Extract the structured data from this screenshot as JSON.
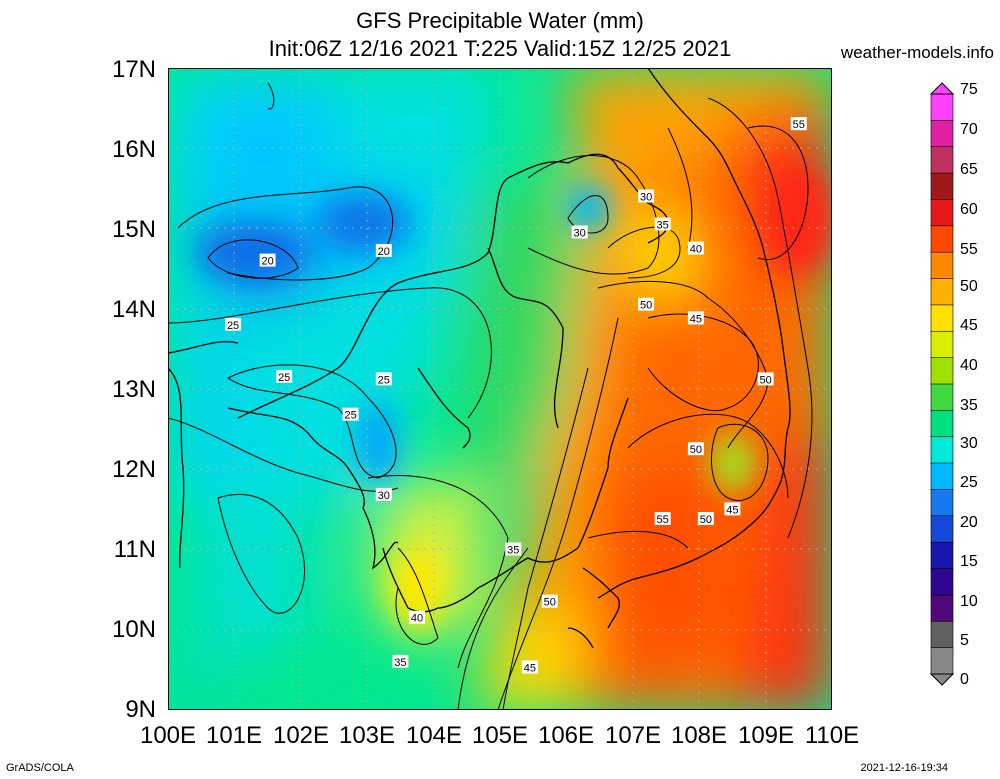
{
  "header": {
    "title": "GFS Precipitable Water (mm)",
    "subtitle": "Init:06Z 12/16 2021 T:225 Valid:15Z 12/25 2021",
    "site": "weather-models.info"
  },
  "footer": {
    "left": "GrADS/COLA",
    "right": "2021-12-16-19:34"
  },
  "axes": {
    "lat_labels": [
      "17N",
      "16N",
      "15N",
      "14N",
      "13N",
      "12N",
      "11N",
      "10N",
      "9N"
    ],
    "lon_labels": [
      "100E",
      "101E",
      "102E",
      "103E",
      "104E",
      "105E",
      "106E",
      "107E",
      "108E",
      "109E",
      "110E"
    ]
  },
  "colorbar": {
    "unit": "mm",
    "labels": [
      "75",
      "70",
      "65",
      "60",
      "55",
      "50",
      "45",
      "40",
      "35",
      "30",
      "25",
      "20",
      "15",
      "10",
      "5",
      "0"
    ],
    "colors": [
      "#ff40ff",
      "#e020a0",
      "#c03060",
      "#a01818",
      "#e81818",
      "#ff4800",
      "#ff8800",
      "#ffb000",
      "#ffe000",
      "#d8f000",
      "#a0e000",
      "#40d840",
      "#00e080",
      "#00e8d8",
      "#00b8ff",
      "#1878f0",
      "#1848d8",
      "#1818b0",
      "#300890",
      "#500878",
      "#606060",
      "#888888"
    ]
  },
  "contours": {
    "labels": [
      {
        "text": "55",
        "lon": 109.5,
        "lat": 16.3
      },
      {
        "text": "30",
        "lon": 107.2,
        "lat": 15.4
      },
      {
        "text": "35",
        "lon": 107.45,
        "lat": 15.05
      },
      {
        "text": "30",
        "lon": 106.2,
        "lat": 14.95
      },
      {
        "text": "40",
        "lon": 107.95,
        "lat": 14.75
      },
      {
        "text": "20",
        "lon": 101.5,
        "lat": 14.6
      },
      {
        "text": "20",
        "lon": 103.25,
        "lat": 14.72
      },
      {
        "text": "50",
        "lon": 107.2,
        "lat": 14.05
      },
      {
        "text": "45",
        "lon": 107.95,
        "lat": 13.88
      },
      {
        "text": "25",
        "lon": 100.98,
        "lat": 13.8
      },
      {
        "text": "25",
        "lon": 101.75,
        "lat": 13.15
      },
      {
        "text": "25",
        "lon": 103.25,
        "lat": 13.12
      },
      {
        "text": "50",
        "lon": 109.0,
        "lat": 13.12
      },
      {
        "text": "25",
        "lon": 102.75,
        "lat": 12.68
      },
      {
        "text": "50",
        "lon": 107.95,
        "lat": 12.25
      },
      {
        "text": "30",
        "lon": 103.25,
        "lat": 11.68
      },
      {
        "text": "45",
        "lon": 108.5,
        "lat": 11.5
      },
      {
        "text": "50",
        "lon": 108.1,
        "lat": 11.38
      },
      {
        "text": "55",
        "lon": 107.45,
        "lat": 11.38
      },
      {
        "text": "35",
        "lon": 105.2,
        "lat": 11.0
      },
      {
        "text": "50",
        "lon": 105.75,
        "lat": 10.35
      },
      {
        "text": "40",
        "lon": 103.75,
        "lat": 10.15
      },
      {
        "text": "35",
        "lon": 103.5,
        "lat": 9.6
      },
      {
        "text": "45",
        "lon": 105.45,
        "lat": 9.53
      }
    ]
  }
}
